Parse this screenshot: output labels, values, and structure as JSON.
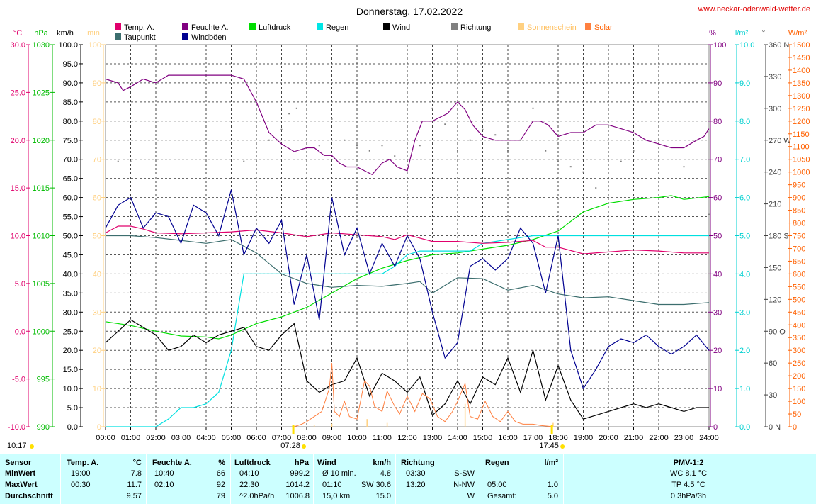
{
  "header": {
    "title": "Donnerstag, 17.02.2022",
    "url": "www.neckar-odenwald-wetter.de"
  },
  "legend": [
    {
      "label": "Temp. A.",
      "color": "#e0006c",
      "col": 0,
      "row": 0
    },
    {
      "label": "Taupunkt",
      "color": "#3c6e6e",
      "col": 0,
      "row": 1
    },
    {
      "label": "Feuchte A.",
      "color": "#800080",
      "col": 1,
      "row": 0
    },
    {
      "label": "Windböen",
      "color": "#000090",
      "col": 1,
      "row": 1
    },
    {
      "label": "Luftdruck",
      "color": "#00dd00",
      "col": 2,
      "row": 0
    },
    {
      "label": "Regen",
      "color": "#00e5e5",
      "col": 3,
      "row": 0
    },
    {
      "label": "Wind",
      "color": "#000000",
      "col": 4,
      "row": 0
    },
    {
      "label": "Richtung",
      "color": "#808080",
      "col": 5,
      "row": 0
    },
    {
      "label": "Sonnenschein",
      "color": "#ffd080",
      "col": 6,
      "row": 0
    },
    {
      "label": "Solar",
      "color": "#ff8040",
      "col": 7,
      "row": 0
    }
  ],
  "axes": {
    "temp": {
      "unit": "°C",
      "color": "#e0006c",
      "ticks": [
        "30.0",
        "25.0",
        "20.0",
        "15.0",
        "10.0",
        "5.0",
        "0.0",
        "-5.0",
        "-10.0"
      ]
    },
    "pressure": {
      "unit": "hPa",
      "color": "#00bb00",
      "ticks": [
        "1030",
        "1025",
        "1020",
        "1015",
        "1010",
        "1005",
        "1000",
        "995",
        "990"
      ]
    },
    "wind": {
      "unit": "km/h",
      "color": "#000000",
      "ticks": [
        "100.0",
        "95.0",
        "90.0",
        "85.0",
        "80.0",
        "75.0",
        "70.0",
        "65.0",
        "60.0",
        "55.0",
        "50.0",
        "45.0",
        "40.0",
        "35.0",
        "30.0",
        "25.0",
        "20.0",
        "15.0",
        "10.0",
        "5.0",
        "0.0"
      ]
    },
    "sunshine": {
      "unit": "min",
      "color": "#ffd080",
      "ticks": [
        "100",
        "90",
        "80",
        "70",
        "60",
        "50",
        "40",
        "30",
        "20",
        "10",
        "0"
      ]
    },
    "humidity": {
      "unit": "%",
      "color": "#800080",
      "ticks": [
        "100",
        "90",
        "80",
        "70",
        "60",
        "50",
        "40",
        "30",
        "20",
        "10",
        "0"
      ]
    },
    "rain": {
      "unit": "l/m²",
      "color": "#00d0d0",
      "ticks": [
        "10.0",
        "9.0",
        "8.0",
        "7.0",
        "6.0",
        "5.0",
        "4.0",
        "3.0",
        "2.0",
        "1.0",
        "0.0"
      ]
    },
    "direction": {
      "unit": "°",
      "color": "#404040",
      "ticks": [
        "360 N",
        "330",
        "300",
        "270 W",
        "240",
        "210",
        "180 S",
        "150",
        "120",
        "90 O",
        "60",
        "30",
        "0 N"
      ]
    },
    "solar": {
      "unit": "W/m²",
      "color": "#ff6000",
      "ticks": [
        "1500",
        "1450",
        "1400",
        "1350",
        "1300",
        "1250",
        "1200",
        "1150",
        "1100",
        "1050",
        "1000",
        "950",
        "900",
        "850",
        "800",
        "750",
        "700",
        "650",
        "600",
        "550",
        "500",
        "450",
        "400",
        "350",
        "300",
        "250",
        "200",
        "150",
        "100",
        "50",
        "0"
      ]
    },
    "time": [
      "00:00",
      "01:00",
      "02:00",
      "03:00",
      "04:00",
      "05:00",
      "06:00",
      "07:00",
      "08:00",
      "09:00",
      "10:00",
      "11:00",
      "12:00",
      "13:00",
      "14:00",
      "15:00",
      "16:00",
      "17:00",
      "18:00",
      "19:00",
      "20:00",
      "21:00",
      "22:00",
      "23:00",
      "24:00"
    ]
  },
  "markers": {
    "sunrise": "07:28",
    "sunset": "17:45",
    "sunshine_total": "10:17"
  },
  "chart_data": {
    "type": "line",
    "title": "Donnerstag, 17.02.2022",
    "x_unit": "hours",
    "xlim": [
      0,
      24
    ],
    "series": [
      {
        "name": "Temp. A.",
        "axis": "temp",
        "ylim": [
          -10,
          30
        ],
        "x": [
          0,
          0.5,
          1,
          1.5,
          2,
          3,
          4,
          5,
          6,
          7,
          8,
          9,
          10,
          11,
          11.5,
          12,
          13,
          14,
          15,
          16,
          17,
          17.5,
          18,
          19,
          20,
          21,
          22,
          23,
          24
        ],
        "y": [
          10.3,
          11.0,
          11.0,
          10.7,
          10.3,
          10.2,
          10.3,
          10.4,
          10.6,
          10.3,
          9.9,
          10.3,
          10.1,
          9.9,
          9.6,
          10.1,
          9.4,
          9.4,
          9.2,
          9.3,
          9.5,
          8.8,
          8.8,
          8.1,
          8.3,
          8.5,
          8.4,
          8.2,
          8.2
        ]
      },
      {
        "name": "Taupunkt",
        "axis": "temp",
        "ylim": [
          -10,
          30
        ],
        "x": [
          0,
          1,
          2,
          3,
          4,
          5,
          6,
          7,
          8,
          9,
          10,
          11,
          12,
          12.5,
          13,
          14,
          15,
          16,
          17,
          18,
          19,
          20,
          21,
          22,
          23,
          24
        ],
        "y": [
          10.0,
          10.0,
          9.8,
          9.5,
          9.2,
          9.6,
          8.2,
          6.0,
          5.0,
          4.6,
          4.8,
          4.7,
          5.0,
          5.2,
          4.0,
          5.6,
          5.5,
          4.3,
          4.8,
          3.9,
          3.5,
          3.6,
          3.2,
          2.8,
          2.8,
          3.0
        ]
      },
      {
        "name": "Feuchte A.",
        "axis": "humidity",
        "ylim": [
          0,
          100
        ],
        "x": [
          0,
          0.5,
          0.7,
          1,
          1.5,
          2,
          2.5,
          3,
          4,
          5,
          5.5,
          6,
          6.5,
          7,
          7.5,
          8,
          8.3,
          8.7,
          9,
          9.3,
          9.6,
          10,
          10.3,
          10.6,
          11,
          11.3,
          11.6,
          12,
          12.3,
          12.6,
          13,
          13.3,
          13.6,
          14,
          14.3,
          14.6,
          15,
          15.5,
          16,
          16.5,
          17,
          17.3,
          17.6,
          18,
          18.5,
          19,
          19.5,
          20,
          20.5,
          21,
          21.5,
          22,
          22.5,
          23,
          23.5,
          23.8,
          24
        ],
        "y": [
          91,
          90,
          88,
          89,
          91,
          90,
          92,
          92,
          92,
          92,
          91,
          85,
          77,
          74,
          72,
          73,
          73,
          71,
          71,
          69,
          68,
          68,
          67,
          66,
          69,
          70,
          68,
          67,
          75,
          80,
          80,
          81,
          82,
          85,
          83,
          79,
          76,
          75,
          75,
          75,
          80,
          80,
          79,
          76,
          77,
          77,
          79,
          79,
          78,
          77,
          75,
          74,
          73,
          73,
          75,
          76,
          78
        ]
      },
      {
        "name": "Luftdruck",
        "axis": "pressure",
        "ylim": [
          990,
          1030
        ],
        "x": [
          0,
          1,
          2,
          3,
          4,
          4.5,
          5,
          6,
          7,
          8,
          9,
          10,
          11,
          12,
          13,
          14,
          15,
          16,
          17,
          18,
          18.5,
          19,
          20,
          21,
          22,
          22.5,
          23,
          24
        ],
        "y": [
          1001.0,
          1000.6,
          1000.0,
          999.5,
          999.4,
          999.2,
          999.6,
          1000.8,
          1001.5,
          1002.5,
          1004.0,
          1005.5,
          1006.6,
          1007.4,
          1008.0,
          1008.2,
          1008.6,
          1009.0,
          1009.6,
          1010.5,
          1011.5,
          1012.5,
          1013.4,
          1013.8,
          1014.0,
          1014.2,
          1013.8,
          1014.1
        ]
      },
      {
        "name": "Regen",
        "axis": "rain",
        "ylim": [
          0,
          10
        ],
        "x": [
          0,
          2,
          2.5,
          3,
          3.5,
          4,
          4.5,
          5,
          5.5,
          6,
          6.5,
          7,
          8,
          9,
          10,
          11,
          11.5,
          12,
          12.5,
          13,
          14,
          14.5,
          15,
          16,
          17,
          18,
          19,
          20,
          21,
          22,
          23,
          24
        ],
        "y": [
          0,
          0,
          0.2,
          0.5,
          0.5,
          0.6,
          0.9,
          2.0,
          4.0,
          4.0,
          4.0,
          4.0,
          4.0,
          4.0,
          4.0,
          4.0,
          4.2,
          4.5,
          4.6,
          4.6,
          4.6,
          4.6,
          4.8,
          4.9,
          5.0,
          5.0,
          5.0,
          5.0,
          5.0,
          5.0,
          5.0,
          5.0
        ]
      },
      {
        "name": "Wind",
        "axis": "wind",
        "ylim": [
          0,
          100
        ],
        "x": [
          0,
          0.5,
          1,
          1.5,
          2,
          2.5,
          3,
          3.5,
          4,
          4.5,
          5,
          5.5,
          6,
          6.5,
          7,
          7.5,
          8,
          8.5,
          9,
          9.5,
          10,
          10.5,
          11,
          11.5,
          12,
          12.5,
          13,
          13.5,
          14,
          14.5,
          15,
          15.5,
          16,
          16.5,
          17,
          17.5,
          18,
          18.5,
          19,
          19.5,
          20,
          20.5,
          21,
          21.5,
          22,
          22.5,
          23,
          23.5,
          24
        ],
        "y": [
          22,
          25,
          28,
          26,
          24,
          20,
          21,
          24,
          22,
          24,
          25,
          26,
          21,
          20,
          24,
          27,
          12,
          9,
          11,
          12,
          18,
          8,
          14,
          12,
          9,
          13,
          3,
          6,
          12,
          6,
          13,
          11,
          18,
          9,
          20,
          7,
          16,
          7,
          2,
          3,
          4,
          5,
          6,
          5,
          6,
          5,
          4,
          5,
          5
        ]
      },
      {
        "name": "Windböen",
        "axis": "wind",
        "ylim": [
          0,
          100
        ],
        "x": [
          0,
          0.5,
          1,
          1.5,
          2,
          2.5,
          3,
          3.5,
          4,
          4.5,
          5,
          5.5,
          6,
          6.5,
          7,
          7.5,
          8,
          8.5,
          9,
          9.5,
          10,
          10.5,
          11,
          11.5,
          12,
          12.5,
          13,
          13.5,
          14,
          14.5,
          15,
          15.5,
          16,
          16.5,
          17,
          17.5,
          18,
          18.5,
          19,
          19.5,
          20,
          20.5,
          21,
          21.5,
          22,
          22.5,
          23,
          23.5,
          24
        ],
        "y": [
          52,
          58,
          60,
          52,
          56,
          55,
          48,
          58,
          56,
          50,
          62,
          45,
          52,
          48,
          54,
          32,
          45,
          28,
          60,
          45,
          52,
          40,
          48,
          42,
          50,
          44,
          30,
          18,
          22,
          42,
          44,
          41,
          44,
          52,
          48,
          35,
          50,
          20,
          10,
          15,
          21,
          23,
          22,
          24,
          21,
          19,
          21,
          24,
          20
        ]
      },
      {
        "name": "Richtung",
        "axis": "direction",
        "ylim": [
          0,
          360
        ],
        "x": [
          0.5,
          1,
          5.5,
          6,
          6.5,
          7,
          7.3,
          7.6,
          8,
          8.5,
          9,
          9.5,
          10,
          10.5,
          11,
          11.5,
          12,
          12.5,
          13,
          13.5,
          14,
          14.5,
          15,
          15.5,
          16,
          16.5,
          17,
          17.5,
          18,
          18.5,
          19,
          19.5,
          20,
          20.5,
          21,
          22,
          23,
          24
        ],
        "y": [
          250,
          250,
          250,
          250,
          270,
          280,
          295,
          300,
          275,
          265,
          290,
          270,
          265,
          260,
          265,
          255,
          250,
          265,
          300,
          285,
          260,
          270,
          280,
          275,
          260,
          270,
          300,
          260,
          250,
          245,
          240,
          225,
          235,
          250,
          260,
          270,
          245,
          200
        ]
      },
      {
        "name": "Sonnenschein",
        "axis": "sunshine",
        "ylim": [
          0,
          100
        ],
        "x": [
          8.3,
          9.0,
          10.4,
          11.2,
          14.3,
          17.8
        ],
        "y": [
          0.5,
          0.8,
          2,
          1,
          6,
          1
        ]
      },
      {
        "name": "Solar",
        "axis": "solar",
        "ylim": [
          0,
          1500
        ],
        "x": [
          7.5,
          7.8,
          8,
          8.3,
          8.6,
          8.9,
          9,
          9.1,
          9.3,
          9.5,
          9.7,
          10,
          10.3,
          10.5,
          10.7,
          11,
          11.2,
          11.5,
          11.7,
          12,
          12.3,
          12.6,
          12.9,
          13.2,
          13.5,
          13.8,
          14,
          14.3,
          14.5,
          14.8,
          15.1,
          15.4,
          15.7,
          16,
          16.3,
          16.6,
          17,
          17.3,
          17.6,
          17.8
        ],
        "y": [
          0,
          10,
          20,
          40,
          60,
          150,
          250,
          60,
          40,
          100,
          40,
          30,
          180,
          160,
          80,
          60,
          140,
          80,
          50,
          120,
          60,
          130,
          110,
          40,
          20,
          60,
          100,
          170,
          40,
          30,
          100,
          40,
          20,
          60,
          20,
          10,
          10,
          5,
          2,
          0
        ]
      }
    ]
  },
  "table": {
    "headers": [
      "Sensor",
      "Temp. A.",
      "°C",
      "Feuchte A.",
      "%",
      "Luftdruck",
      "hPa",
      "Wind",
      "km/h",
      "Richtung",
      "Regen",
      "l/m²",
      "PMV-1:2"
    ],
    "rows": [
      {
        "label": "MinWert",
        "temp_time": "19:00",
        "temp_val": "7.8",
        "hum_time": "10:40",
        "hum_val": "66",
        "press_time": "04:10",
        "press_val": "999.2",
        "wind_label": "Ø 10 min.",
        "wind_val": "4.8",
        "dir_time": "03:30",
        "dir_val": "S-SW",
        "rain_time": "",
        "rain_val": "",
        "pmv": "WC 8.1 °C"
      },
      {
        "label": "MaxWert",
        "temp_time": "00:30",
        "temp_val": "11.7",
        "hum_time": "02:10",
        "hum_val": "92",
        "press_time": "22:30",
        "press_val": "1014.2",
        "wind_label": "01:10",
        "wind_val": "SW 30.6",
        "dir_time": "13:20",
        "dir_val": "N-NW",
        "rain_time": "05:00",
        "rain_val": "1.0",
        "pmv": "TP 4.5 °C"
      },
      {
        "label": "Durchschnitt",
        "temp_time": "",
        "temp_val": "9.57",
        "hum_time": "",
        "hum_val": "79",
        "press_time": "^2.0hPa/h",
        "press_val": "1006.8",
        "wind_label": "15,0 km",
        "wind_val": "15.0",
        "dir_time": "",
        "dir_val": "W",
        "rain_time": "Gesamt:",
        "rain_val": "5.0",
        "pmv": "0.3hPa/3h"
      }
    ]
  }
}
